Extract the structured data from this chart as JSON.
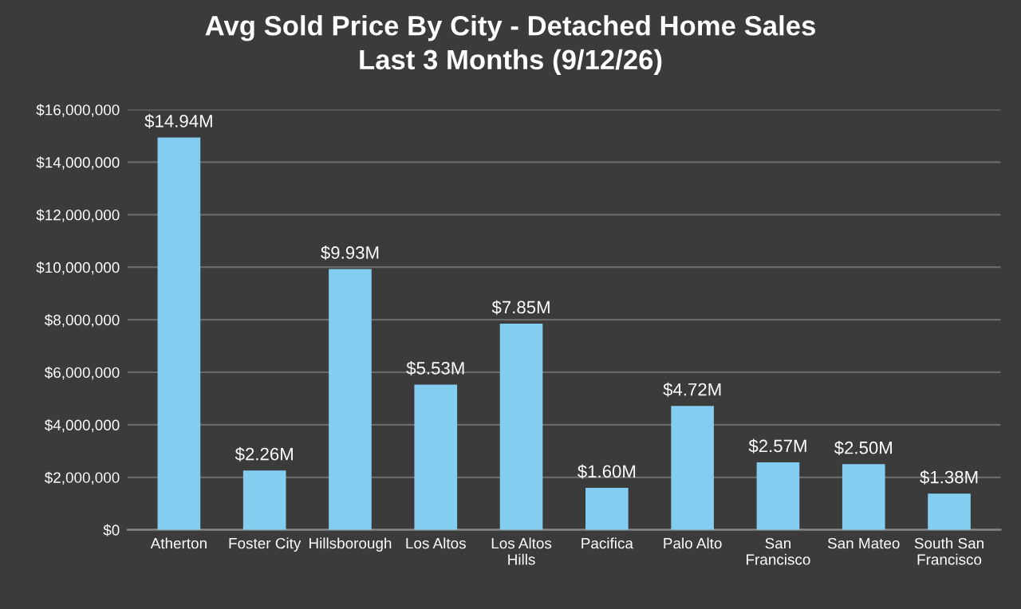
{
  "chart_data": {
    "type": "bar",
    "title": "Avg Sold Price By City - Detached Home Sales\nLast 3 Months (9/12/26)",
    "categories": [
      "Atherton",
      "Foster City",
      "Hillsborough",
      "Los Altos",
      "Los Altos\nHills",
      "Pacifica",
      "Palo Alto",
      "San\nFrancisco",
      "San Mateo",
      "South San\nFrancisco"
    ],
    "values": [
      14940000,
      2260000,
      9930000,
      5530000,
      7850000,
      1600000,
      4720000,
      2570000,
      2500000,
      1380000
    ],
    "value_labels": [
      "$14.94M",
      "$2.26M",
      "$9.93M",
      "$5.53M",
      "$7.85M",
      "$1.60M",
      "$4.72M",
      "$2.57M",
      "$2.50M",
      "$1.38M"
    ],
    "color": "#83cdf0",
    "ylim": [
      0,
      16000000
    ],
    "yticks": [
      {
        "value": 0,
        "label": "$0"
      },
      {
        "value": 2000000,
        "label": "$2,000,000"
      },
      {
        "value": 4000000,
        "label": "$4,000,000"
      },
      {
        "value": 6000000,
        "label": "$6,000,000"
      },
      {
        "value": 8000000,
        "label": "$8,000,000"
      },
      {
        "value": 10000000,
        "label": "$10,000,000"
      },
      {
        "value": 12000000,
        "label": "$12,000,000"
      },
      {
        "value": 14000000,
        "label": "$14,000,000"
      },
      {
        "value": 16000000,
        "label": "$16,000,000"
      }
    ],
    "grid": "y",
    "legend": false
  }
}
